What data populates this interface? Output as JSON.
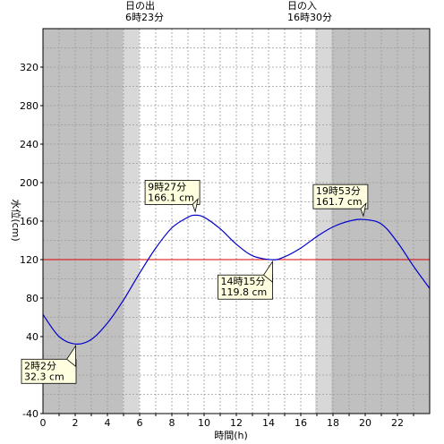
{
  "sunrise": {
    "label": "日の出",
    "time_label": "6時23分",
    "hour": 6.383
  },
  "sunset": {
    "label": "日の入",
    "time_label": "16時30分",
    "hour": 16.5
  },
  "chart_data": {
    "type": "line",
    "xlabel": "時間(h)",
    "ylabel": "水位(cm)",
    "xlim": [
      0,
      24
    ],
    "ylim": [
      -40,
      360
    ],
    "x_ticks": [
      0,
      2,
      4,
      6,
      8,
      10,
      12,
      14,
      16,
      18,
      20,
      22
    ],
    "y_ticks": [
      -40,
      0,
      40,
      80,
      120,
      160,
      200,
      240,
      280,
      320
    ],
    "grid": true,
    "reference_line": {
      "value": 120,
      "color": "#e00000"
    },
    "series": [
      {
        "color": "#0000cc",
        "x": [
          0,
          1,
          2.033,
          3,
          4,
          5,
          6,
          7,
          8,
          9,
          9.45,
          10,
          11,
          12,
          13,
          14.25,
          15,
          16,
          17,
          18,
          19,
          19.883,
          21,
          22,
          23,
          24
        ],
        "y": [
          63,
          40,
          32.3,
          37,
          54,
          78,
          106,
          132,
          153,
          164,
          166.1,
          164,
          152,
          136,
          124,
          119.8,
          123,
          132,
          144,
          154,
          160,
          161.7,
          157,
          138,
          113,
          90
        ]
      }
    ],
    "annotations": [
      {
        "time": "2時2分",
        "value": "32.3 cm",
        "x": 2.033,
        "y": 32.3,
        "placement": "below-left"
      },
      {
        "time": "9時27分",
        "value": "166.1 cm",
        "x": 9.45,
        "y": 166.1,
        "placement": "above-left"
      },
      {
        "time": "14時15分",
        "value": "119.8 cm",
        "x": 14.25,
        "y": 119.8,
        "placement": "below-left"
      },
      {
        "time": "19時53分",
        "value": "161.7 cm",
        "x": 19.883,
        "y": 161.7,
        "placement": "above-left"
      }
    ],
    "colors": {
      "night": "#c0c0c0",
      "twilight": "#d8d8d8",
      "day": "#ffffff",
      "grid": "#9a9a9a",
      "callout_bg": "#ffffe0"
    }
  }
}
